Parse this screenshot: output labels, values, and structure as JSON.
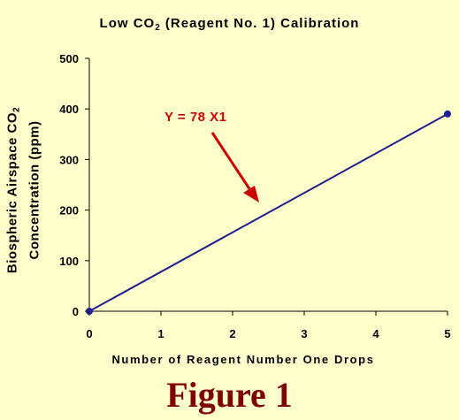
{
  "chart_data": {
    "type": "line",
    "title": "Low CO2 (Reagent No. 1) Calibration",
    "title_parts": [
      "Low CO",
      "2",
      " (Reagent No. 1) Calibration"
    ],
    "xlabel": "Number of Reagent Number One Drops",
    "ylabel_lines": [
      [
        "Biospheric Airspace CO",
        "2"
      ],
      [
        "Concentration (ppm)"
      ]
    ],
    "x": [
      0,
      5
    ],
    "y": [
      0,
      390
    ],
    "xlim": [
      0,
      5
    ],
    "ylim": [
      0,
      500
    ],
    "xticks": [
      0,
      1,
      2,
      3,
      4,
      5
    ],
    "yticks": [
      0,
      100,
      200,
      300,
      400,
      500
    ],
    "grid": false,
    "line_color": "#1f1f8f",
    "annotation": {
      "text": "Y = 78 X1",
      "color": "#cc0000"
    }
  },
  "figure_label": "Figure 1",
  "colors": {
    "background": "#ffffcc",
    "figure_label": "#800000"
  }
}
